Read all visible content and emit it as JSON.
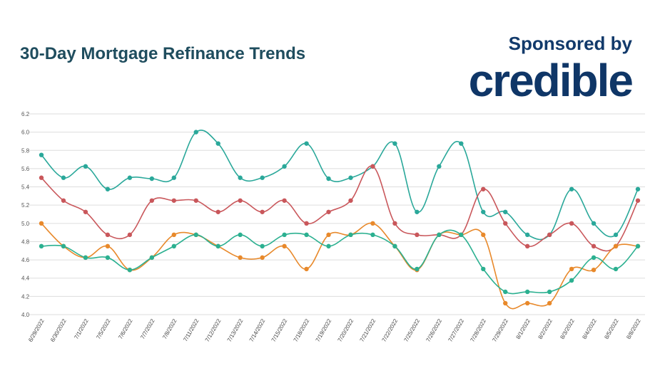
{
  "header": {
    "title": "30-Day Mortgage Refinance Trends",
    "sponsor_text": "Sponsored by",
    "brand_logo": "credible"
  },
  "chart_data": {
    "type": "line",
    "title": "30-Day Mortgage Refinance Trends",
    "xlabel": "",
    "ylabel": "",
    "ylim": [
      4.0,
      6.2
    ],
    "yticks": [
      "4.0",
      "4.2",
      "4.4",
      "4.6",
      "4.8",
      "5.0",
      "5.2",
      "5.4",
      "5.6",
      "5.8",
      "6.0",
      "6.2"
    ],
    "grid": true,
    "categories": [
      "6/29/2022",
      "6/30/2022",
      "7/1/2022",
      "7/5/2022",
      "7/6/2022",
      "7/7/2022",
      "7/8/2022",
      "7/11/2022",
      "7/12/2022",
      "7/13/2022",
      "7/14/2022",
      "7/15/2022",
      "7/18/2022",
      "7/19/2022",
      "7/20/2022",
      "7/21/2022",
      "7/22/2022",
      "7/25/2022",
      "7/26/2022",
      "7/27/2022",
      "7/28/2022",
      "7/29/2022",
      "8/1/2022",
      "8/2/2022",
      "8/3/2022",
      "8/4/2022",
      "8/5/2022",
      "8/8/2022"
    ],
    "series": [
      {
        "color": "#2aa89a",
        "values": [
          5.75,
          5.5,
          5.625,
          5.375,
          5.5,
          5.49,
          5.5,
          6.0,
          5.875,
          5.5,
          5.5,
          5.625,
          5.875,
          5.49,
          5.5,
          5.625,
          5.875,
          5.125,
          5.625,
          5.875,
          5.125,
          5.125,
          4.875,
          4.875,
          5.375,
          5.0,
          4.875,
          5.375
        ]
      },
      {
        "color": "#c9575b",
        "values": [
          5.5,
          5.25,
          5.125,
          4.875,
          4.875,
          5.25,
          5.25,
          5.25,
          5.125,
          5.25,
          5.125,
          5.25,
          5.0,
          5.125,
          5.25,
          5.625,
          5.0,
          4.875,
          4.875,
          4.875,
          5.375,
          5.0,
          4.75,
          4.875,
          5.0,
          4.75,
          4.75,
          5.25
        ]
      },
      {
        "color": "#e8892b",
        "values": [
          5.0,
          4.75,
          4.625,
          4.75,
          4.49,
          4.625,
          4.875,
          4.875,
          4.75,
          4.625,
          4.625,
          4.75,
          4.5,
          4.875,
          4.875,
          5.0,
          4.75,
          4.49,
          4.875,
          4.875,
          4.875,
          4.125,
          4.125,
          4.125,
          4.5,
          4.49,
          4.75,
          4.75
        ]
      },
      {
        "color": "#2bb090",
        "values": [
          4.75,
          4.75,
          4.625,
          4.625,
          4.49,
          4.625,
          4.75,
          4.875,
          4.75,
          4.875,
          4.75,
          4.875,
          4.875,
          4.75,
          4.875,
          4.875,
          4.75,
          4.5,
          4.875,
          4.875,
          4.5,
          4.25,
          4.25,
          4.25,
          4.375,
          4.625,
          4.5,
          4.75
        ]
      }
    ]
  }
}
